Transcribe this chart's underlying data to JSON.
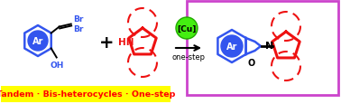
{
  "bg_color": "#ffffff",
  "right_box_border_color": "#cc44cc",
  "right_box_bg": "#ffffff",
  "banner_bg": "#ffff00",
  "banner_text": "Tandem · Bis-heterocycles · One-step",
  "banner_text_color": "#ff0000",
  "arrow_color": "#000000",
  "plus_color": "#000000",
  "catalyst_bg": "#44ee11",
  "catalyst_text": "[Cu]",
  "catalyst_text_color": "#000000",
  "onestep_text": "one-step",
  "dashed_circle_color": "#ee1111",
  "ar_circle_color": "#3355ee",
  "ar_text_color": "#ffffff",
  "blue_ring_color": "#3355ee",
  "red_ring_color": "#ee1111",
  "bond_color": "#000000",
  "br_text_color": "#3355ee",
  "oh_text_color": "#3355ee",
  "hn_text_color": "#ee1111",
  "n_text_color": "#000000",
  "o_text_color": "#000000",
  "figsize": [
    3.78,
    1.16
  ],
  "dpi": 100
}
